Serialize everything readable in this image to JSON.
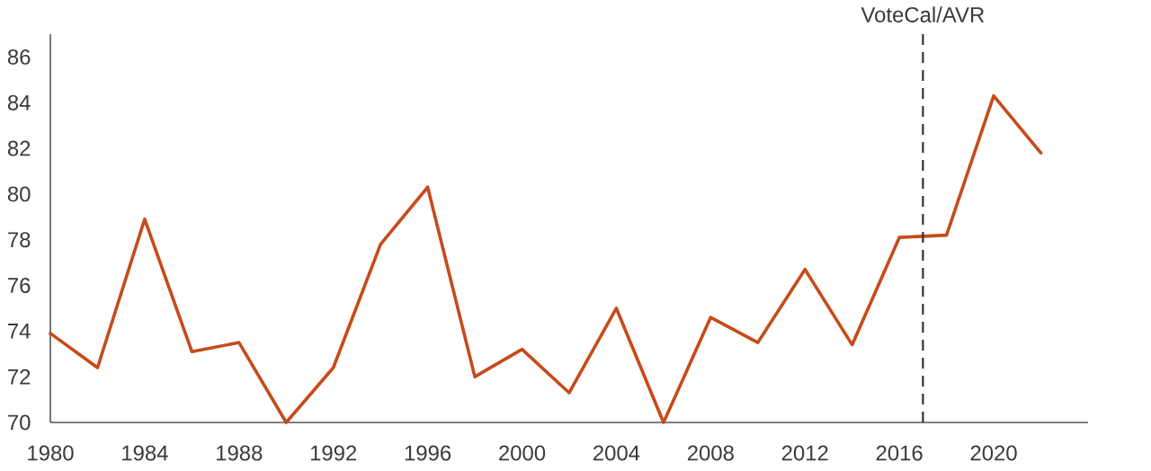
{
  "chart_data": {
    "type": "line",
    "x": [
      1980,
      1982,
      1984,
      1986,
      1988,
      1990,
      1992,
      1994,
      1996,
      1998,
      2000,
      2002,
      2004,
      2006,
      2008,
      2010,
      2012,
      2014,
      2016,
      2018,
      2020,
      2022
    ],
    "series": [
      {
        "color": "#c64b1a",
        "values": [
          73.9,
          72.4,
          78.9,
          73.1,
          73.5,
          70.0,
          72.4,
          77.8,
          80.3,
          72.0,
          73.2,
          71.3,
          75.0,
          70.0,
          74.6,
          73.5,
          76.7,
          73.4,
          78.1,
          78.2,
          84.3,
          81.8
        ]
      }
    ],
    "xlim": [
      1980,
      2024
    ],
    "ylim": [
      70,
      87
    ],
    "xticks": [
      1980,
      1984,
      1988,
      1992,
      1996,
      2000,
      2004,
      2008,
      2012,
      2016,
      2020
    ],
    "yticks": [
      70,
      72,
      74,
      76,
      78,
      80,
      82,
      84,
      86
    ],
    "marker": "none",
    "line_style": "solid",
    "ref_lines": [
      {
        "axis": "x",
        "value": 2017,
        "label": "VoteCal/AVR",
        "color": "#333333",
        "line_style": "dashed"
      }
    ]
  }
}
